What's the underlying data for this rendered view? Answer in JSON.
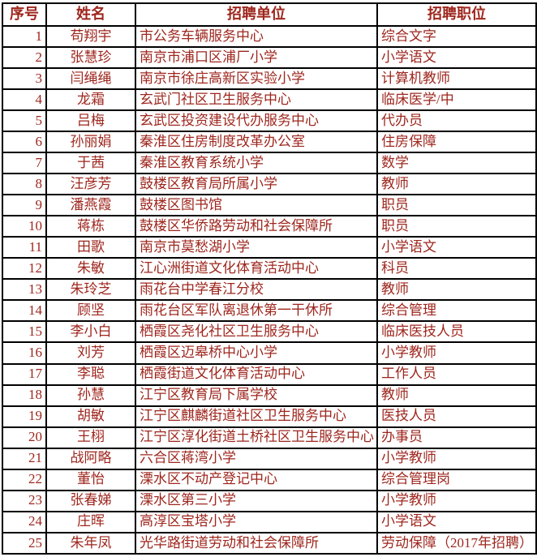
{
  "colors": {
    "text": "#9e261d",
    "border": "#000000",
    "background": "#ffffff"
  },
  "table": {
    "columns": [
      {
        "key": "no",
        "label": "序号"
      },
      {
        "key": "name",
        "label": "姓名"
      },
      {
        "key": "unit",
        "label": "招聘单位"
      },
      {
        "key": "position",
        "label": "招聘职位"
      }
    ],
    "rows": [
      {
        "no": "1",
        "name": "苟翔宇",
        "unit": "市公务车辆服务中心",
        "position": "综合文字"
      },
      {
        "no": "2",
        "name": "张慧珍",
        "unit": "南京市浦口区浦厂小学",
        "position": "小学语文"
      },
      {
        "no": "3",
        "name": "闫绳绳",
        "unit": "南京市徐庄高新区实验小学",
        "position": "计算机教师"
      },
      {
        "no": "4",
        "name": "龙霜",
        "unit": "玄武门社区卫生服务中心",
        "position": "临床医学/中"
      },
      {
        "no": "5",
        "name": "吕梅",
        "unit": "玄武区投资建设代办服务中心",
        "position": "代办员"
      },
      {
        "no": "6",
        "name": "孙丽娟",
        "unit": "秦淮区住房制度改革办公室",
        "position": "住房保障"
      },
      {
        "no": "7",
        "name": "于茜",
        "unit": "秦淮区教育系统小学",
        "position": "数学"
      },
      {
        "no": "8",
        "name": "汪彦芳",
        "unit": "鼓楼区教育局所属小学",
        "position": "教师"
      },
      {
        "no": "9",
        "name": "潘燕霞",
        "unit": "鼓楼区图书馆",
        "position": "职员"
      },
      {
        "no": "10",
        "name": "蒋栋",
        "unit": "鼓楼区华侨路劳动和社会保障所",
        "position": "职员"
      },
      {
        "no": "11",
        "name": "田歌",
        "unit": "南京市莫愁湖小学",
        "position": "小学语文"
      },
      {
        "no": "12",
        "name": "朱敏",
        "unit": "江心洲街道文化体育活动中心",
        "position": "科员"
      },
      {
        "no": "13",
        "name": "朱玲芝",
        "unit": "雨花台中学春江分校",
        "position": "教师"
      },
      {
        "no": "14",
        "name": "顾坚",
        "unit": "雨花台区军队离退休第一干休所",
        "position": "综合管理"
      },
      {
        "no": "15",
        "name": "李小白",
        "unit": "栖霞区尧化社区卫生服务中心",
        "position": "临床医技人员"
      },
      {
        "no": "16",
        "name": "刘芳",
        "unit": "栖霞区迈皋桥中心小学",
        "position": "小学教师"
      },
      {
        "no": "17",
        "name": "李聪",
        "unit": "栖霞街道文化体育活动中心",
        "position": "工作人员"
      },
      {
        "no": "18",
        "name": "孙慧",
        "unit": "江宁区教育局下属学校",
        "position": "教师"
      },
      {
        "no": "19",
        "name": "胡敏",
        "unit": "江宁区麒麟街道社区卫生服务中心",
        "position": "医技人员"
      },
      {
        "no": "20",
        "name": "王栩",
        "unit": "江宁区淳化街道土桥社区卫生服务中心",
        "position": "办事员"
      },
      {
        "no": "21",
        "name": "战阿略",
        "unit": "六合区蒋湾小学",
        "position": "小学教师"
      },
      {
        "no": "22",
        "name": "董怡",
        "unit": "溧水区不动产登记中心",
        "position": "综合管理岗"
      },
      {
        "no": "23",
        "name": "张春娣",
        "unit": "溧水区第三小学",
        "position": "小学教师"
      },
      {
        "no": "24",
        "name": "庄晖",
        "unit": "高淳区宝塔小学",
        "position": "小学语文"
      },
      {
        "no": "25",
        "name": "朱年凤",
        "unit": "光华路街道劳动和社会保障所",
        "position": "劳动保障（2017年招聘）"
      }
    ]
  }
}
